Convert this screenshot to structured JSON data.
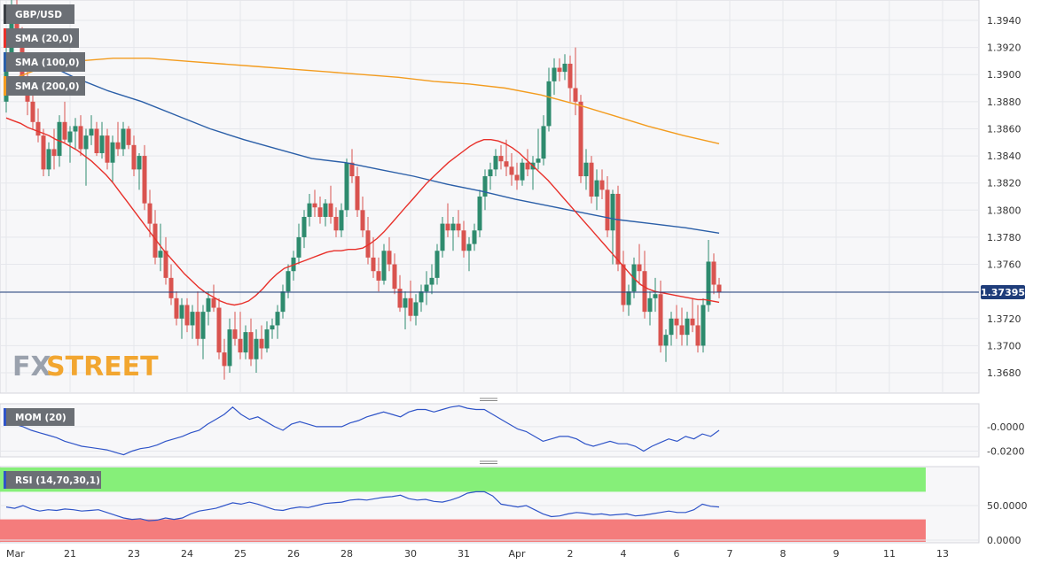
{
  "symbol": "GBP/USD",
  "watermark": {
    "fx": "FX",
    "street": "STREET"
  },
  "current_price_label": "1.37395",
  "legend": {
    "sma20": "SMA (20,0)",
    "sma100": "SMA (100,0)",
    "sma200": "SMA (200,0)",
    "mom": "MOM (20)",
    "rsi": "RSI (14,70,30,1)"
  },
  "colors": {
    "bull": "#2e8b6e",
    "bear": "#d9534f",
    "sma20": "#e8302a",
    "sma100": "#2b5fa8",
    "sma200": "#f39c1f",
    "indicator_line": "#2f54c8",
    "rsi_overbought_zone": "#86ef79",
    "rsi_oversold_zone": "#f47c7c",
    "price_line": "#1f3d7a",
    "panel_bg": "#f7f7f9"
  },
  "chart_data": {
    "type": "candlestick",
    "title": "GBP/USD",
    "y_range": [
      1.3665,
      1.3955
    ],
    "y_ticks": [
      1.368,
      1.37,
      1.372,
      1.374,
      1.376,
      1.378,
      1.38,
      1.382,
      1.384,
      1.386,
      1.388,
      1.39,
      1.392,
      1.394
    ],
    "y_tick_labels": [
      "1.3680",
      "1.3700",
      "1.3720",
      "1.3740",
      "1.3760",
      "1.3780",
      "1.3800",
      "1.3820",
      "1.3840",
      "1.3860",
      "1.3880",
      "1.3900",
      "1.3920",
      "1.3940"
    ],
    "x_labels": [
      {
        "label": "Mar",
        "candle": 0
      },
      {
        "label": "21",
        "candle": 12
      },
      {
        "label": "23",
        "candle": 24
      },
      {
        "label": "24",
        "candle": 34
      },
      {
        "label": "25",
        "candle": 44
      },
      {
        "label": "26",
        "candle": 54
      },
      {
        "label": "28",
        "candle": 64
      },
      {
        "label": "30",
        "candle": 76
      },
      {
        "label": "31",
        "candle": 86
      },
      {
        "label": "Apr",
        "candle": 96
      },
      {
        "label": "2",
        "candle": 106
      },
      {
        "label": "4",
        "candle": 116
      },
      {
        "label": "6",
        "candle": 126
      },
      {
        "label": "7",
        "candle": 136
      },
      {
        "label": "8",
        "candle": 146
      },
      {
        "label": "9",
        "candle": 156
      },
      {
        "label": "11",
        "candle": 166
      },
      {
        "label": "13",
        "candle": 176
      }
    ],
    "current_price": 1.37395,
    "candles": [
      [
        1.388,
        1.3925,
        1.3872,
        1.3915
      ],
      [
        1.3915,
        1.396,
        1.3905,
        1.3945
      ],
      [
        1.3945,
        1.396,
        1.392,
        1.3925
      ],
      [
        1.3925,
        1.3935,
        1.389,
        1.3895
      ],
      [
        1.3895,
        1.3905,
        1.387,
        1.388
      ],
      [
        1.388,
        1.3885,
        1.386,
        1.3865
      ],
      [
        1.3865,
        1.3875,
        1.385,
        1.3855
      ],
      [
        1.3855,
        1.386,
        1.3825,
        1.383
      ],
      [
        1.383,
        1.385,
        1.3825,
        1.3845
      ],
      [
        1.3845,
        1.386,
        1.383,
        1.384
      ],
      [
        1.384,
        1.387,
        1.3832,
        1.3865
      ],
      [
        1.3865,
        1.388,
        1.385,
        1.3852
      ],
      [
        1.385,
        1.3862,
        1.3835,
        1.3858
      ],
      [
        1.3858,
        1.3868,
        1.3845,
        1.3862
      ],
      [
        1.3862,
        1.387,
        1.384,
        1.3845
      ],
      [
        1.3845,
        1.386,
        1.3818,
        1.3855
      ],
      [
        1.3855,
        1.387,
        1.3848,
        1.386
      ],
      [
        1.386,
        1.3865,
        1.384,
        1.3842
      ],
      [
        1.3842,
        1.3865,
        1.3838,
        1.3855
      ],
      [
        1.3855,
        1.386,
        1.383,
        1.3835
      ],
      [
        1.3835,
        1.3855,
        1.382,
        1.385
      ],
      [
        1.385,
        1.3865,
        1.384,
        1.3845
      ],
      [
        1.3845,
        1.3865,
        1.384,
        1.386
      ],
      [
        1.386,
        1.3862,
        1.3845,
        1.3848
      ],
      [
        1.3848,
        1.3855,
        1.3825,
        1.383
      ],
      [
        1.383,
        1.3842,
        1.3815,
        1.384
      ],
      [
        1.384,
        1.3848,
        1.38,
        1.3805
      ],
      [
        1.3805,
        1.3815,
        1.378,
        1.379
      ],
      [
        1.379,
        1.38,
        1.376,
        1.3765
      ],
      [
        1.3765,
        1.379,
        1.3755,
        1.377
      ],
      [
        1.377,
        1.378,
        1.3745,
        1.375
      ],
      [
        1.375,
        1.376,
        1.373,
        1.3735
      ],
      [
        1.3735,
        1.374,
        1.3715,
        1.372
      ],
      [
        1.372,
        1.3735,
        1.3705,
        1.373
      ],
      [
        1.373,
        1.3735,
        1.371,
        1.3715
      ],
      [
        1.3715,
        1.373,
        1.3705,
        1.3725
      ],
      [
        1.3725,
        1.374,
        1.37,
        1.3705
      ],
      [
        1.3705,
        1.373,
        1.369,
        1.3725
      ],
      [
        1.3725,
        1.374,
        1.3715,
        1.3735
      ],
      [
        1.3735,
        1.3745,
        1.3725,
        1.3728
      ],
      [
        1.3728,
        1.3735,
        1.369,
        1.3695
      ],
      [
        1.3695,
        1.3705,
        1.3675,
        1.3685
      ],
      [
        1.3685,
        1.372,
        1.368,
        1.3712
      ],
      [
        1.3712,
        1.3725,
        1.37,
        1.3705
      ],
      [
        1.3705,
        1.3725,
        1.369,
        1.3695
      ],
      [
        1.3695,
        1.3715,
        1.369,
        1.371
      ],
      [
        1.371,
        1.372,
        1.3685,
        1.369
      ],
      [
        1.369,
        1.3712,
        1.368,
        1.3705
      ],
      [
        1.3705,
        1.3715,
        1.369,
        1.3698
      ],
      [
        1.3698,
        1.3718,
        1.3695,
        1.3712
      ],
      [
        1.3712,
        1.372,
        1.3705,
        1.3715
      ],
      [
        1.3715,
        1.373,
        1.3705,
        1.3725
      ],
      [
        1.3725,
        1.3745,
        1.372,
        1.374
      ],
      [
        1.374,
        1.376,
        1.3735,
        1.3755
      ],
      [
        1.3755,
        1.377,
        1.3748,
        1.3765
      ],
      [
        1.3765,
        1.379,
        1.376,
        1.378
      ],
      [
        1.378,
        1.38,
        1.3772,
        1.3795
      ],
      [
        1.3795,
        1.3812,
        1.3788,
        1.3805
      ],
      [
        1.3805,
        1.3815,
        1.3795,
        1.3802
      ],
      [
        1.3802,
        1.381,
        1.379,
        1.3795
      ],
      [
        1.3795,
        1.3808,
        1.3788,
        1.3805
      ],
      [
        1.3805,
        1.3818,
        1.379,
        1.3795
      ],
      [
        1.3795,
        1.3802,
        1.378,
        1.3785
      ],
      [
        1.3785,
        1.3805,
        1.378,
        1.38
      ],
      [
        1.38,
        1.3838,
        1.3795,
        1.3835
      ],
      [
        1.3835,
        1.3845,
        1.382,
        1.3825
      ],
      [
        1.3825,
        1.3832,
        1.3795,
        1.38
      ],
      [
        1.38,
        1.381,
        1.378,
        1.3785
      ],
      [
        1.3785,
        1.3795,
        1.376,
        1.3765
      ],
      [
        1.3765,
        1.378,
        1.375,
        1.3755
      ],
      [
        1.3755,
        1.3765,
        1.374,
        1.3748
      ],
      [
        1.3748,
        1.3775,
        1.3745,
        1.377
      ],
      [
        1.377,
        1.378,
        1.3755,
        1.376
      ],
      [
        1.376,
        1.3768,
        1.3738,
        1.3742
      ],
      [
        1.3742,
        1.3752,
        1.3725,
        1.3728
      ],
      [
        1.3728,
        1.374,
        1.3712,
        1.3735
      ],
      [
        1.3735,
        1.3748,
        1.3718,
        1.3722
      ],
      [
        1.3722,
        1.3738,
        1.3715,
        1.3732
      ],
      [
        1.3732,
        1.3745,
        1.3725,
        1.374
      ],
      [
        1.374,
        1.3755,
        1.373,
        1.3745
      ],
      [
        1.3745,
        1.376,
        1.3738,
        1.375
      ],
      [
        1.375,
        1.3775,
        1.3745,
        1.377
      ],
      [
        1.377,
        1.3795,
        1.3765,
        1.379
      ],
      [
        1.379,
        1.3805,
        1.378,
        1.3785
      ],
      [
        1.3785,
        1.3795,
        1.377,
        1.379
      ],
      [
        1.379,
        1.38,
        1.378,
        1.3785
      ],
      [
        1.3785,
        1.3792,
        1.3765,
        1.377
      ],
      [
        1.377,
        1.378,
        1.3755,
        1.3775
      ],
      [
        1.3775,
        1.379,
        1.377,
        1.3785
      ],
      [
        1.3785,
        1.3815,
        1.378,
        1.381
      ],
      [
        1.381,
        1.383,
        1.38,
        1.3825
      ],
      [
        1.3825,
        1.3835,
        1.3815,
        1.383
      ],
      [
        1.383,
        1.3845,
        1.3825,
        1.384
      ],
      [
        1.384,
        1.3848,
        1.383,
        1.3836
      ],
      [
        1.3836,
        1.3852,
        1.3825,
        1.3832
      ],
      [
        1.3832,
        1.3842,
        1.3818,
        1.3826
      ],
      [
        1.3826,
        1.3835,
        1.3815,
        1.3822
      ],
      [
        1.3822,
        1.3838,
        1.3818,
        1.3835
      ],
      [
        1.3835,
        1.3845,
        1.3825,
        1.383
      ],
      [
        1.383,
        1.384,
        1.3815,
        1.3835
      ],
      [
        1.3835,
        1.386,
        1.383,
        1.3838
      ],
      [
        1.3838,
        1.387,
        1.3833,
        1.3862
      ],
      [
        1.3862,
        1.3905,
        1.3858,
        1.3895
      ],
      [
        1.3895,
        1.3912,
        1.3885,
        1.3905
      ],
      [
        1.3905,
        1.3912,
        1.3895,
        1.3902
      ],
      [
        1.3902,
        1.3915,
        1.3896,
        1.3908
      ],
      [
        1.3908,
        1.3914,
        1.388,
        1.389
      ],
      [
        1.389,
        1.392,
        1.387,
        1.388
      ],
      [
        1.388,
        1.3885,
        1.382,
        1.3825
      ],
      [
        1.3825,
        1.3845,
        1.3815,
        1.3835
      ],
      [
        1.3835,
        1.384,
        1.3805,
        1.381
      ],
      [
        1.381,
        1.383,
        1.38,
        1.3822
      ],
      [
        1.3822,
        1.383,
        1.3808,
        1.3815
      ],
      [
        1.3815,
        1.3825,
        1.378,
        1.3785
      ],
      [
        1.3785,
        1.3815,
        1.376,
        1.3812
      ],
      [
        1.3812,
        1.3818,
        1.3755,
        1.376
      ],
      [
        1.376,
        1.377,
        1.3725,
        1.373
      ],
      [
        1.373,
        1.3745,
        1.3722,
        1.374
      ],
      [
        1.374,
        1.3765,
        1.3735,
        1.376
      ],
      [
        1.376,
        1.3775,
        1.3745,
        1.3755
      ],
      [
        1.3755,
        1.377,
        1.372,
        1.3725
      ],
      [
        1.3725,
        1.374,
        1.3715,
        1.3735
      ],
      [
        1.3735,
        1.375,
        1.3725,
        1.3738
      ],
      [
        1.3738,
        1.3748,
        1.3695,
        1.37
      ],
      [
        1.37,
        1.3712,
        1.3688,
        1.3708
      ],
      [
        1.3708,
        1.3725,
        1.37,
        1.372
      ],
      [
        1.372,
        1.373,
        1.3705,
        1.3715
      ],
      [
        1.3715,
        1.3728,
        1.37,
        1.3708
      ],
      [
        1.3708,
        1.3725,
        1.37,
        1.372
      ],
      [
        1.372,
        1.3735,
        1.371,
        1.3715
      ],
      [
        1.3715,
        1.373,
        1.3695,
        1.37
      ],
      [
        1.37,
        1.3735,
        1.3695,
        1.373
      ],
      [
        1.373,
        1.3778,
        1.3725,
        1.3762
      ],
      [
        1.3762,
        1.3768,
        1.3738,
        1.3745
      ],
      [
        1.3745,
        1.375,
        1.3735,
        1.37395
      ]
    ],
    "series": [
      {
        "name": "SMA (20,0)",
        "values": [
          1.3868,
          1.3866,
          1.3864,
          1.3861,
          1.3859,
          1.3857,
          1.3855,
          1.3852,
          1.385,
          1.3847,
          1.3844,
          1.384,
          1.3836,
          1.3831,
          1.3826,
          1.382,
          1.3813,
          1.3806,
          1.3799,
          1.3792,
          1.3785,
          1.3778,
          1.3771,
          1.3765,
          1.3759,
          1.3753,
          1.3748,
          1.3743,
          1.3739,
          1.3736,
          1.3733,
          1.3731,
          1.373,
          1.3731,
          1.3733,
          1.3737,
          1.3742,
          1.3748,
          1.3753,
          1.3757,
          1.3759,
          1.3761,
          1.3763,
          1.3765,
          1.3767,
          1.3769,
          1.377,
          1.377,
          1.3771,
          1.3771,
          1.3772,
          1.3775,
          1.3779,
          1.3784,
          1.379,
          1.3796,
          1.3802,
          1.3808,
          1.3814,
          1.382,
          1.3825,
          1.383,
          1.3835,
          1.3839,
          1.3843,
          1.3847,
          1.385,
          1.3852,
          1.3852,
          1.3851,
          1.3849,
          1.3846,
          1.3842,
          1.3837,
          1.3832,
          1.3827,
          1.3822,
          1.3816,
          1.381,
          1.3804,
          1.3798,
          1.3792,
          1.3786,
          1.378,
          1.3774,
          1.3768,
          1.3762,
          1.3756,
          1.375,
          1.3745,
          1.3742,
          1.374,
          1.3739,
          1.3738,
          1.3737,
          1.3736,
          1.3735,
          1.3734,
          1.3734,
          1.3733,
          1.3732
        ]
      },
      {
        "name": "SMA (100,0)",
        "values": [
          1.3916,
          1.391,
          1.3898,
          1.3888,
          1.388,
          1.387,
          1.386,
          1.3852,
          1.3845,
          1.3838,
          1.3835,
          1.383,
          1.3825,
          1.3819,
          1.3814,
          1.3808,
          1.3803,
          1.3798,
          1.3793,
          1.379,
          1.3787,
          1.3783
        ]
      },
      {
        "name": "SMA (200,0)",
        "values": [
          1.3895,
          1.3905,
          1.391,
          1.3912,
          1.3912,
          1.391,
          1.3908,
          1.3906,
          1.3904,
          1.3902,
          1.39,
          1.3898,
          1.3895,
          1.3893,
          1.389,
          1.3885,
          1.3878,
          1.387,
          1.3862,
          1.3855,
          1.3849
        ]
      },
      {
        "name": "MOM (20)",
        "values": [
          0.005,
          0.002,
          0.0,
          -0.003,
          -0.005,
          -0.007,
          -0.009,
          -0.012,
          -0.014,
          -0.016,
          -0.017,
          -0.018,
          -0.019,
          -0.021,
          -0.023,
          -0.02,
          -0.018,
          -0.017,
          -0.015,
          -0.012,
          -0.01,
          -0.008,
          -0.005,
          -0.003,
          0.002,
          0.006,
          0.01,
          0.016,
          0.01,
          0.006,
          0.008,
          0.004,
          0.0,
          -0.003,
          0.002,
          0.004,
          0.002,
          0.0,
          0.0,
          0.0,
          0.0,
          0.003,
          0.005,
          0.008,
          0.01,
          0.012,
          0.01,
          0.008,
          0.012,
          0.014,
          0.014,
          0.012,
          0.014,
          0.016,
          0.017,
          0.015,
          0.014,
          0.014,
          0.01,
          0.006,
          0.002,
          -0.002,
          -0.004,
          -0.008,
          -0.012,
          -0.01,
          -0.008,
          -0.008,
          -0.01,
          -0.014,
          -0.016,
          -0.014,
          -0.012,
          -0.014,
          -0.014,
          -0.016,
          -0.02,
          -0.016,
          -0.013,
          -0.01,
          -0.012,
          -0.008,
          -0.01,
          -0.006,
          -0.008,
          -0.003
        ],
        "ylim": [
          -0.024,
          0.018
        ],
        "ticks": [
          -0.02,
          0.0
        ],
        "tick_labels": [
          "-0.0200",
          "-0.0000"
        ]
      },
      {
        "name": "RSI (14,70,30,1)",
        "values": [
          48,
          46,
          50,
          45,
          42,
          44,
          43,
          45,
          44,
          42,
          43,
          44,
          40,
          36,
          32,
          30,
          31,
          28,
          29,
          32,
          30,
          32,
          38,
          42,
          44,
          46,
          50,
          54,
          52,
          55,
          52,
          48,
          44,
          43,
          46,
          48,
          47,
          50,
          53,
          54,
          55,
          58,
          59,
          58,
          60,
          62,
          63,
          65,
          60,
          58,
          59,
          56,
          55,
          58,
          62,
          68,
          70,
          70,
          64,
          52,
          50,
          48,
          50,
          44,
          38,
          34,
          35,
          38,
          40,
          39,
          37,
          38,
          36,
          37,
          38,
          35,
          36,
          38,
          40,
          42,
          40,
          40,
          44,
          52,
          49,
          48
        ],
        "ylim": [
          0,
          100
        ],
        "ticks": [
          0,
          50
        ],
        "tick_labels": [
          "0.0000",
          "50.0000"
        ],
        "overbought": 70,
        "oversold": 30
      }
    ]
  }
}
